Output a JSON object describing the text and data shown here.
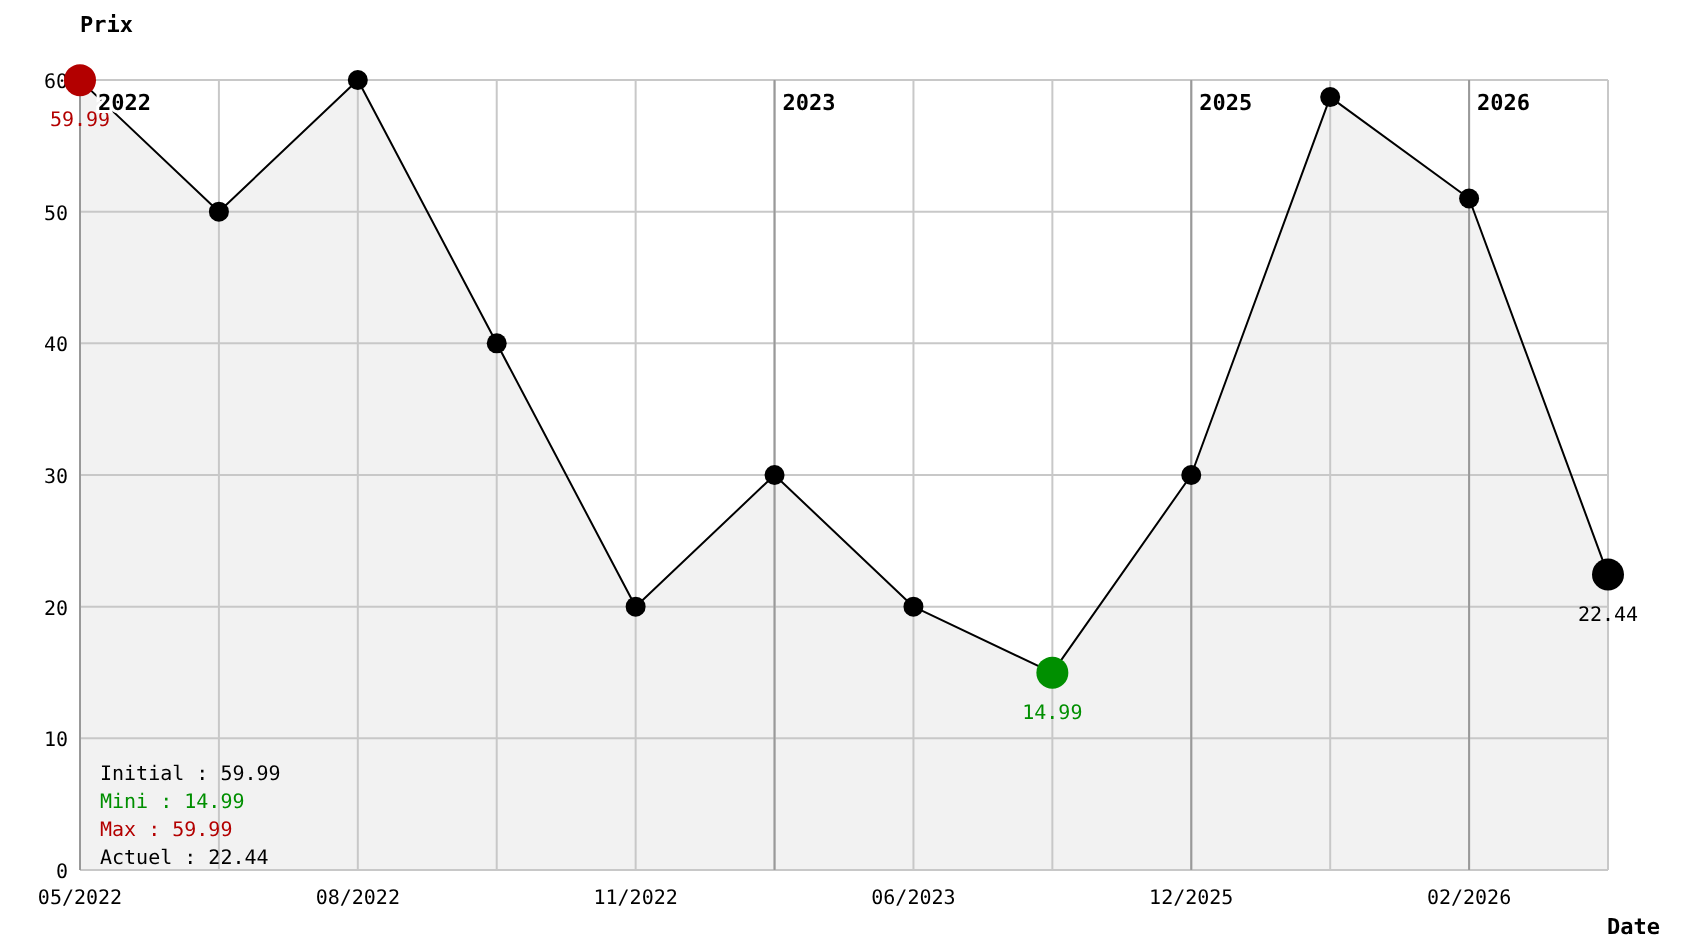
{
  "chart_data": {
    "type": "area",
    "ylabel": "Prix",
    "xlabel": "Date",
    "categories": [
      "05/2022",
      null,
      "08/2022",
      null,
      "11/2022",
      null,
      "06/2023",
      null,
      "12/2025",
      null,
      "02/2026",
      null
    ],
    "series": [
      {
        "color": "#000000",
        "values": [
          59.99,
          50,
          60,
          40,
          20,
          30,
          20,
          14.99,
          30,
          58.7,
          51,
          22.44
        ],
        "colors": [
          "#b30000",
          "#000000",
          "#000000",
          "#000000",
          "#000000",
          "#000000",
          "#000000",
          "#008f00",
          "#000000",
          "#000000",
          "#000000",
          "#000000"
        ],
        "value_labels": [
          "59.99",
          null,
          null,
          null,
          null,
          null,
          null,
          "14.99",
          null,
          null,
          null,
          "22.44"
        ]
      }
    ],
    "ylim": [
      0,
      60
    ],
    "yticks": [
      0,
      10,
      20,
      30,
      40,
      50,
      60
    ],
    "grid": true,
    "marker": "circle",
    "annotations": [
      "Initial : 59.99",
      "Mini : 14.99",
      "Max : 59.99",
      "Actuel : 22.44",
      "2022",
      "2023",
      "2025",
      "2026"
    ]
  }
}
